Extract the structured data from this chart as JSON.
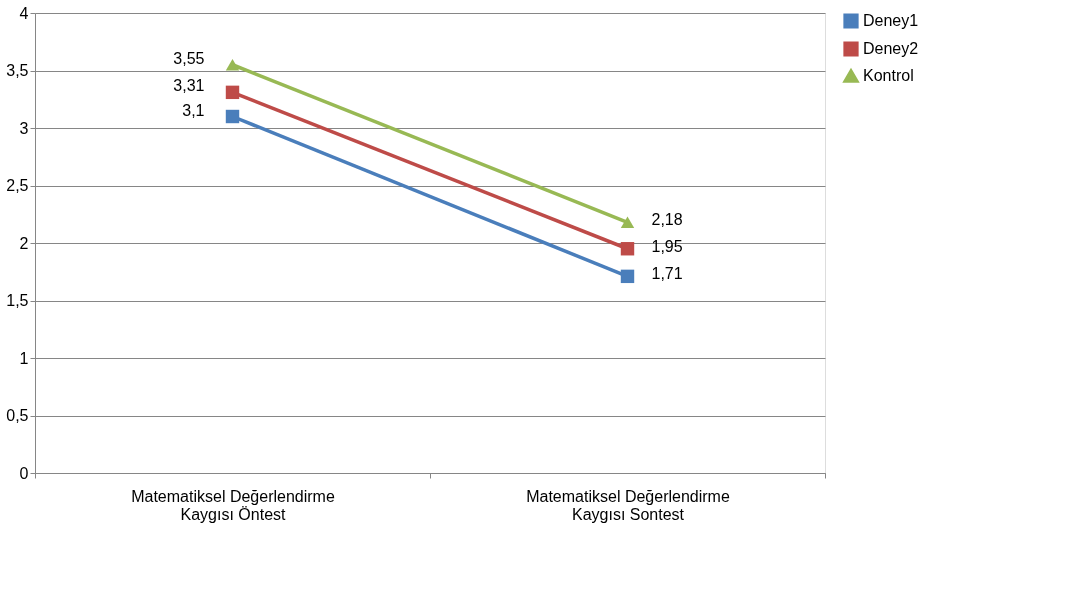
{
  "chart_data": {
    "type": "line",
    "categories": [
      "Matematiksel Değerlendirme Kaygısı Öntest",
      "Matematiksel Değerlendirme Kaygısı Sontest"
    ],
    "series": [
      {
        "name": "Deney1",
        "color": "#4a7ebb",
        "marker": "square",
        "values": [
          3.1,
          1.71
        ],
        "value_labels": [
          "3,1",
          "1,71"
        ]
      },
      {
        "name": "Deney2",
        "color": "#be4b48",
        "marker": "square",
        "values": [
          3.31,
          1.95
        ],
        "value_labels": [
          "3,31",
          "1,95"
        ]
      },
      {
        "name": "Kontrol",
        "color": "#98b954",
        "marker": "triangle",
        "values": [
          3.55,
          2.18
        ],
        "value_labels": [
          "3,55",
          "2,18"
        ]
      }
    ],
    "ylim": [
      0,
      4
    ],
    "yticks": [
      0,
      {
        "value": 0.5,
        "label": "0,5"
      },
      1,
      {
        "value": 1.5,
        "label": "1,5"
      },
      2,
      {
        "value": 2.5,
        "label": "2,5"
      },
      3,
      {
        "value": 3.5,
        "label": "3,5"
      },
      4
    ],
    "grid": "y",
    "legend": "right",
    "line_style": "solid"
  }
}
